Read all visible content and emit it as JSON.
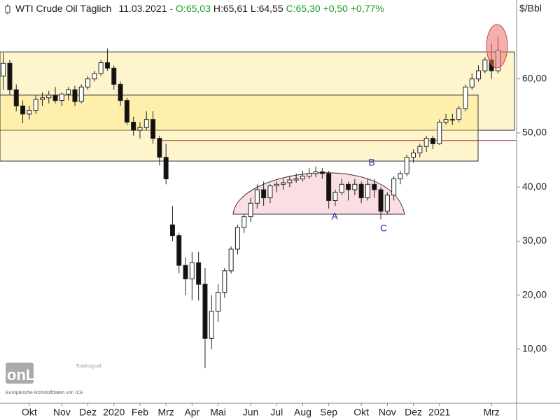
{
  "chart_data": {
    "type": "candlestick",
    "title": "WTI Crude Oil Täglich",
    "date": "11.03.2021",
    "quote_open": "- O:65,03",
    "quote_high": "H:65,61",
    "quote_low": "L:64,55",
    "quote_close": "C:65,30 +0,50 +0,77%",
    "unit": "$/Bbl",
    "logo_brand": "Tradesignal",
    "logo_text": "onLine",
    "source": "Europäische Rohstoffdaten von ICE",
    "annotations": [
      "A",
      "B",
      "C"
    ],
    "categories": [
      null,
      null,
      null,
      null,
      "Okt",
      null,
      null,
      null,
      null,
      "Nov",
      null,
      null,
      null,
      "Dez",
      null,
      null,
      null,
      "2020",
      null,
      null,
      null,
      "Feb",
      null,
      null,
      null,
      "Mrz",
      null,
      null,
      null,
      "Apr",
      null,
      null,
      null,
      "Mai",
      null,
      null,
      null,
      null,
      "Jun",
      null,
      null,
      null,
      "Jul",
      null,
      null,
      null,
      "Aug",
      null,
      null,
      null,
      "Sep",
      null,
      null,
      null,
      null,
      "Okt",
      null,
      null,
      null,
      "Nov",
      null,
      null,
      null,
      "Dez",
      null,
      null,
      null,
      "2021",
      null,
      null,
      null,
      null,
      null,
      null,
      null,
      "Mrz",
      null
    ],
    "open": [
      60.5,
      62.9,
      58,
      55,
      53.5,
      54.2,
      56.2,
      56.5,
      57,
      56,
      57.2,
      58,
      55.8,
      58.5,
      60,
      61,
      63,
      62,
      59,
      56,
      52,
      50.5,
      51,
      52.5,
      49,
      45.5,
      33,
      31,
      25.5,
      23,
      26,
      22,
      12,
      17,
      20.5,
      24.5,
      28.5,
      32.5,
      34.5,
      37,
      39.5,
      38,
      40.2,
      40.5,
      40.8,
      41.3,
      41.5,
      42,
      42.5,
      42.8,
      42.5,
      37.5,
      39,
      40.5,
      39.5,
      40.5,
      38,
      40.5,
      39.5,
      35.5,
      38.5,
      41.5,
      42.5,
      45.5,
      46.3,
      47.5,
      49,
      48,
      52,
      52.5,
      52.5,
      54.5,
      58.5,
      60,
      61.5,
      63.5,
      61.5
    ],
    "high": [
      64.8,
      63.5,
      59,
      56,
      55,
      57,
      57.5,
      57.8,
      58.5,
      57.5,
      58.5,
      58.7,
      59,
      60.5,
      61.5,
      63.5,
      65.6,
      62.5,
      59.5,
      56.5,
      53,
      52,
      54,
      54,
      49.5,
      48,
      36.5,
      31.5,
      27,
      28,
      28,
      25,
      20,
      22,
      25,
      29,
      33,
      35,
      38,
      40.5,
      41,
      40.5,
      41,
      41.5,
      42,
      42.5,
      43,
      43.5,
      43.8,
      43.5,
      43,
      39.5,
      41.5,
      41,
      41.5,
      41,
      41.5,
      41.5,
      40,
      39,
      42,
      43,
      46,
      47,
      48,
      49.5,
      49.5,
      52.5,
      53.5,
      53.5,
      55,
      59,
      61,
      62.5,
      64,
      66.5,
      67.9
    ],
    "low": [
      58,
      57,
      54,
      51.8,
      52.5,
      53.5,
      55,
      55.5,
      55.5,
      55,
      56,
      55,
      55.5,
      58,
      59.5,
      60.5,
      61.5,
      58,
      55,
      51.5,
      49.5,
      49,
      50.5,
      48,
      44,
      40.5,
      30,
      24,
      20,
      19,
      19,
      6.5,
      10,
      15,
      19.5,
      24,
      27.5,
      31.5,
      33.5,
      36,
      36.5,
      37,
      39,
      39.5,
      40,
      40.8,
      41,
      41.5,
      41.8,
      41.5,
      36,
      36.5,
      38.5,
      37.5,
      38.5,
      37,
      37.5,
      38,
      34,
      35,
      37.5,
      40.5,
      42,
      44.5,
      45.5,
      46.5,
      47,
      47.8,
      51.5,
      51.5,
      52,
      54,
      58,
      59.5,
      61,
      60,
      61
    ],
    "close": [
      62.9,
      58,
      55,
      53.5,
      54.2,
      56.2,
      56.5,
      57,
      56,
      57.2,
      58,
      55.8,
      58.5,
      60,
      61,
      63,
      62,
      59,
      56,
      52,
      50.5,
      51,
      52.5,
      49,
      45.5,
      41.5,
      31,
      25.5,
      23,
      26,
      22,
      12,
      17,
      20.5,
      24.5,
      28.5,
      32.5,
      34.5,
      37,
      39.5,
      38,
      40.2,
      40.5,
      40.8,
      41.3,
      41.5,
      42,
      42.5,
      42.8,
      42.5,
      37.5,
      39,
      40.5,
      39.5,
      40.5,
      38,
      40.5,
      39.5,
      35.5,
      38.5,
      41.5,
      42.5,
      45.5,
      46.3,
      47.5,
      49,
      48,
      52,
      52.5,
      52.5,
      54.5,
      58.5,
      60,
      61.5,
      63.5,
      61.5,
      65.3
    ],
    "zones": [
      {
        "from": 50.5,
        "to": 65
      },
      {
        "from": 44.8,
        "to": 57
      }
    ],
    "hline": 48.6,
    "ylim": [
      0,
      74.6
    ],
    "yticks": [
      {
        "value": 10,
        "label": "10,00"
      },
      {
        "value": 20,
        "label": "20,00"
      },
      {
        "value": 30,
        "label": "30,00"
      },
      {
        "value": 40,
        "label": "40,00"
      },
      {
        "value": 50,
        "label": "50,00"
      },
      {
        "value": 60,
        "label": "60,00"
      }
    ],
    "up_color": "#ffffff",
    "down_color": "#111111"
  }
}
